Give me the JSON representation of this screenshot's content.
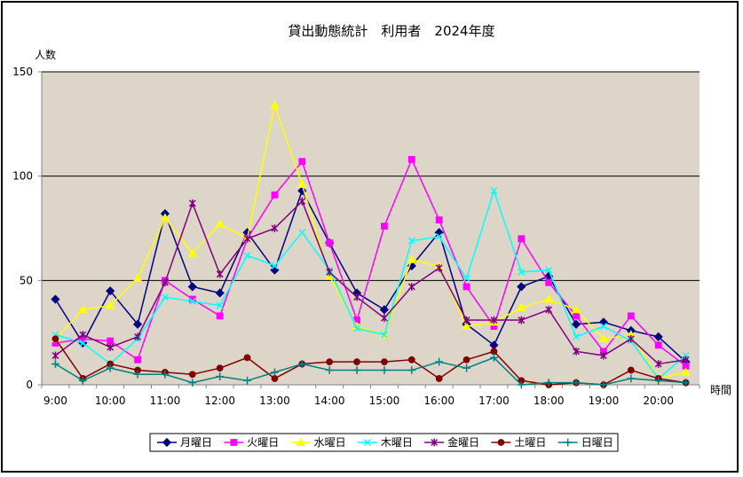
{
  "chart_data": {
    "type": "line",
    "title": "貸出動態統計　利用者　2024年度",
    "xlabel": "時間",
    "ylabel": "人数",
    "ylim": [
      0,
      150
    ],
    "yticks": [
      0,
      50,
      100,
      150
    ],
    "x_tick_labels": [
      "9:00",
      "10:00",
      "11:00",
      "12:00",
      "13:00",
      "14:00",
      "15:00",
      "16:00",
      "17:00",
      "18:00",
      "19:00",
      "20:00"
    ],
    "categories": [
      "9:00",
      "9:30",
      "10:00",
      "10:30",
      "11:00",
      "11:30",
      "12:00",
      "12:30",
      "13:00",
      "13:30",
      "14:00",
      "14:30",
      "15:00",
      "15:30",
      "16:00",
      "16:30",
      "17:00",
      "17:30",
      "18:00",
      "18:30",
      "19:00",
      "19:30",
      "20:00",
      "20:30"
    ],
    "grid": true,
    "legend_position": "bottom",
    "plot_background": "#ddd5c8",
    "series": [
      {
        "name": "月曜日",
        "color": "#000080",
        "marker": "diamond",
        "values": [
          41,
          20,
          45,
          29,
          82,
          47,
          44,
          73,
          55,
          93,
          68,
          44,
          36,
          57,
          73,
          29,
          19,
          47,
          52,
          29,
          30,
          26,
          23,
          11
        ]
      },
      {
        "name": "火曜日",
        "color": "#ff00ff",
        "marker": "square",
        "values": [
          20,
          22,
          21,
          12,
          50,
          41,
          33,
          70,
          91,
          107,
          68,
          31,
          76,
          108,
          79,
          47,
          28,
          70,
          49,
          33,
          16,
          33,
          19,
          9
        ]
      },
      {
        "name": "水曜日",
        "color": "#ffff00",
        "marker": "triangle",
        "values": [
          22,
          36,
          38,
          51,
          80,
          63,
          77,
          70,
          134,
          96,
          52,
          28,
          24,
          60,
          57,
          28,
          30,
          37,
          41,
          36,
          22,
          24,
          3,
          6
        ]
      },
      {
        "name": "木曜日",
        "color": "#00ffff",
        "marker": "x",
        "values": [
          24,
          20,
          10,
          22,
          42,
          40,
          38,
          62,
          57,
          73,
          55,
          27,
          24,
          69,
          71,
          51,
          93,
          54,
          55,
          23,
          28,
          21,
          3,
          14
        ]
      },
      {
        "name": "金曜日",
        "color": "#800080",
        "marker": "star",
        "values": [
          14,
          24,
          18,
          23,
          49,
          87,
          53,
          70,
          75,
          88,
          54,
          42,
          32,
          47,
          56,
          31,
          31,
          31,
          36,
          16,
          14,
          22,
          10,
          12
        ]
      },
      {
        "name": "土曜日",
        "color": "#800000",
        "marker": "circle",
        "values": [
          22,
          3,
          10,
          7,
          6,
          5,
          8,
          13,
          3,
          10,
          11,
          11,
          11,
          12,
          3,
          12,
          16,
          2,
          0,
          1,
          0,
          7,
          3,
          1
        ]
      },
      {
        "name": "日曜日",
        "color": "#008080",
        "marker": "plus",
        "values": [
          10,
          2,
          8,
          5,
          5,
          1,
          4,
          2,
          6,
          10,
          7,
          7,
          7,
          7,
          11,
          8,
          13,
          0,
          1,
          1,
          0,
          3,
          2,
          1
        ]
      }
    ]
  }
}
